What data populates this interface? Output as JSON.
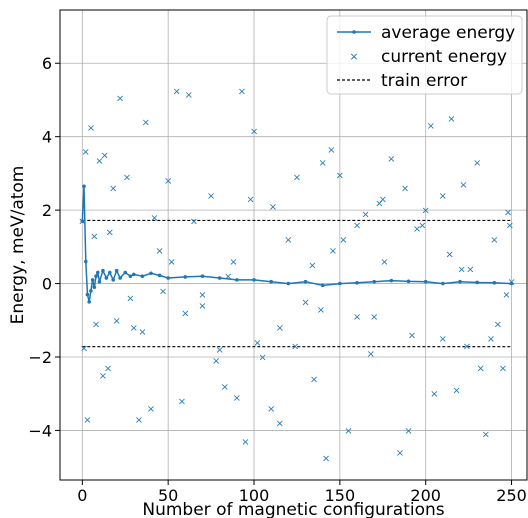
{
  "chart_data": {
    "type": "line",
    "xlabel": "Number of magnetic configurations",
    "ylabel": "Energy, meV/atom",
    "xlim": [
      -13,
      259
    ],
    "ylim": [
      -5.35,
      7.45
    ],
    "xticks": [
      0,
      50,
      100,
      150,
      200,
      250
    ],
    "yticks": [
      -4,
      -2,
      0,
      2,
      4,
      6
    ],
    "grid": true,
    "legend_position": "top-right",
    "colors": {
      "series": "#1f77b4",
      "train": "#000000",
      "grid": "#b0b0b0"
    },
    "series": [
      {
        "name": "average energy",
        "style": "line-with-dot-markers",
        "x": [
          0,
          1,
          2,
          3,
          4,
          5,
          6,
          7,
          8,
          9,
          10,
          12,
          14,
          16,
          18,
          20,
          22,
          25,
          28,
          30,
          35,
          40,
          45,
          50,
          60,
          70,
          80,
          90,
          100,
          110,
          120,
          130,
          140,
          150,
          160,
          170,
          180,
          190,
          200,
          210,
          220,
          230,
          240,
          250
        ],
        "y": [
          1.7,
          2.65,
          0.6,
          -0.3,
          -0.5,
          -0.2,
          0.1,
          -0.1,
          0.2,
          0.3,
          0.05,
          0.35,
          0.15,
          0.3,
          0.1,
          0.35,
          0.15,
          0.3,
          0.2,
          0.25,
          0.2,
          0.28,
          0.22,
          0.15,
          0.18,
          0.2,
          0.15,
          0.1,
          0.1,
          0.05,
          0.0,
          0.05,
          -0.05,
          0.0,
          0.02,
          0.05,
          0.08,
          0.06,
          0.05,
          0.0,
          0.05,
          0.03,
          0.02,
          0.0
        ]
      },
      {
        "name": "current energy",
        "style": "x-markers",
        "x": [
          0,
          2,
          5,
          8,
          10,
          13,
          15,
          18,
          22,
          26,
          30,
          33,
          37,
          40,
          45,
          50,
          55,
          58,
          62,
          65,
          70,
          75,
          80,
          85,
          90,
          93,
          95,
          100,
          105,
          110,
          115,
          120,
          125,
          130,
          135,
          140,
          142,
          145,
          150,
          155,
          160,
          165,
          170,
          175,
          180,
          185,
          190,
          195,
          200,
          203,
          205,
          210,
          215,
          218,
          222,
          226,
          230,
          235,
          238,
          240,
          245,
          248,
          250,
          3,
          20,
          42,
          70,
          98,
          124,
          152,
          176,
          210,
          232,
          12,
          35,
          60,
          88,
          115,
          146,
          168,
          188,
          214,
          242,
          7,
          28,
          52,
          78,
          102,
          134,
          160,
          198,
          224,
          249,
          1,
          16,
          47,
          83,
          111,
          139,
          173,
          192,
          221,
          247
        ],
        "y": [
          1.7,
          3.6,
          4.25,
          -1.1,
          3.35,
          3.5,
          -2.3,
          2.6,
          5.05,
          2.9,
          -1.2,
          -3.7,
          4.4,
          -3.4,
          0.9,
          2.8,
          5.25,
          -3.2,
          5.15,
          1.7,
          -0.6,
          2.4,
          -1.8,
          0.2,
          -3.1,
          5.25,
          -4.3,
          4.15,
          -2.0,
          -3.4,
          -3.8,
          1.2,
          2.9,
          -0.5,
          -2.6,
          3.3,
          -4.75,
          3.65,
          2.95,
          -4.0,
          1.6,
          1.9,
          -0.9,
          2.3,
          3.4,
          -4.6,
          -4.0,
          1.5,
          2.0,
          4.3,
          -3.0,
          2.4,
          4.5,
          -2.9,
          2.7,
          0.4,
          3.3,
          -4.1,
          -1.5,
          1.2,
          -2.3,
          1.95,
          0.05,
          -3.7,
          -1.0,
          1.8,
          -0.3,
          2.3,
          -1.7,
          1.2,
          0.6,
          -1.5,
          -2.3,
          -2.5,
          -1.3,
          -0.8,
          0.6,
          -1.2,
          0.9,
          -1.9,
          2.6,
          0.8,
          -1.1,
          1.3,
          -0.4,
          0.6,
          -2.1,
          -1.6,
          0.5,
          -0.9,
          1.6,
          -1.7,
          1.6,
          -1.75,
          1.4,
          -0.2,
          -2.8,
          2.1,
          -0.7,
          2.2,
          -1.4,
          0.4,
          -0.3
        ]
      },
      {
        "name": "train error",
        "style": "dashed",
        "x": [
          0,
          250
        ],
        "y_values": [
          1.72,
          -1.72
        ]
      }
    ]
  }
}
